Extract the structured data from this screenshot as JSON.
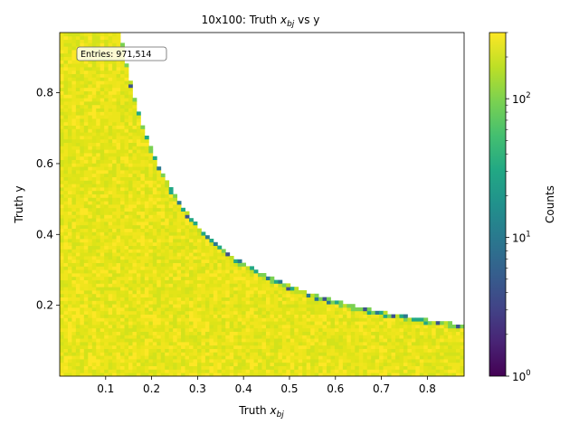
{
  "chart_data": {
    "type": "heatmap",
    "title_main": "10x100: Truth ",
    "title_var": "x",
    "title_sub": "bj",
    "title_tail": " vs y",
    "xlabel_main": "Truth ",
    "xlabel_var": "x",
    "xlabel_sub": "bj",
    "ylabel": "Truth y",
    "xlim": [
      0.0,
      0.88
    ],
    "ylim": [
      0.0,
      0.97
    ],
    "xticks": [
      "0.1",
      "0.2",
      "0.3",
      "0.4",
      "0.5",
      "0.6",
      "0.7",
      "0.8"
    ],
    "yticks": [
      "0.2",
      "0.4",
      "0.6",
      "0.8"
    ],
    "bins": [
      100,
      100
    ],
    "kinematic_boundary": "x * y ≈ 0.128 (upper-right region empty)",
    "typical_bin_count": 200,
    "annotation": "Entries: 971,514",
    "colorbar": {
      "label": "Counts",
      "scale": "log",
      "range": [
        1,
        300
      ],
      "colormap": "viridis",
      "ticks": [
        {
          "value": 1,
          "base": "10",
          "exp": "0"
        },
        {
          "value": 10,
          "base": "10",
          "exp": "1"
        },
        {
          "value": 100,
          "base": "10",
          "exp": "2"
        }
      ]
    }
  }
}
